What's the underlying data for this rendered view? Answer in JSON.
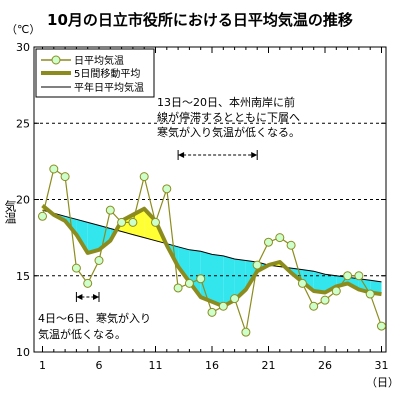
{
  "chart_data": {
    "type": "line",
    "title": "10月の日立市役所における日平均気温の推移",
    "y_unit": "（℃）",
    "ylabel": "気温",
    "x_unit": "（日）",
    "xlim": [
      1,
      31
    ],
    "ylim": [
      10,
      30
    ],
    "x_ticks": [
      "1",
      "6",
      "11",
      "16",
      "21",
      "26",
      "31"
    ],
    "y_ticks": [
      "10",
      "15",
      "20",
      "25",
      "30"
    ],
    "grid_y_dashed": [
      15,
      20,
      25
    ],
    "legend_position": "top-left",
    "x": [
      1,
      2,
      3,
      4,
      5,
      6,
      7,
      8,
      9,
      10,
      11,
      12,
      13,
      14,
      15,
      16,
      17,
      18,
      19,
      20,
      21,
      22,
      23,
      24,
      25,
      26,
      27,
      28,
      29,
      30,
      31
    ],
    "series": [
      {
        "name": "日平均気温",
        "color": "#8c8c1e",
        "marker": "circle",
        "values": [
          18.9,
          22.0,
          21.5,
          15.5,
          14.5,
          16.0,
          19.3,
          18.5,
          18.5,
          21.5,
          18.5,
          20.7,
          14.2,
          14.5,
          14.8,
          12.6,
          13.0,
          13.5,
          11.3,
          15.7,
          17.2,
          17.5,
          17.0,
          14.5,
          13.0,
          13.4,
          14.0,
          15.0,
          15.0,
          13.8,
          11.7
        ]
      },
      {
        "name": "5日間移動平均",
        "color": "#8c8c1e",
        "style": "thick",
        "values": [
          19.6,
          19.0,
          18.6,
          17.7,
          16.5,
          16.7,
          17.3,
          18.6,
          19.0,
          19.4,
          18.6,
          17.0,
          15.6,
          14.6,
          13.6,
          13.3,
          13.0,
          13.4,
          14.1,
          15.3,
          15.7,
          15.9,
          15.2,
          14.6,
          14.0,
          13.9,
          14.3,
          14.5,
          14.1,
          13.9,
          13.8
        ]
      },
      {
        "name": "平年日平均気温",
        "color": "#000000",
        "style": "thin",
        "values": [
          19.3,
          19.1,
          18.9,
          18.7,
          18.5,
          18.3,
          18.1,
          17.9,
          17.7,
          17.5,
          17.3,
          17.1,
          16.9,
          16.7,
          16.6,
          16.4,
          16.3,
          16.1,
          16.0,
          15.9,
          15.7,
          15.6,
          15.5,
          15.4,
          15.3,
          15.1,
          15.0,
          14.9,
          14.8,
          14.7,
          14.6
        ]
      }
    ],
    "fill_above_color": "#ffff33",
    "fill_below_color": "#33e6ee",
    "annotations": [
      {
        "lines": [
          "13日～20日、本州南岸に前",
          "線が停滞するとともに下層へ",
          "寒気が入り気温が低くなる。"
        ],
        "x_range": [
          13,
          20
        ]
      },
      {
        "lines": [
          "4日～6日、寒気が入り",
          "気温が低くなる。"
        ],
        "x_range": [
          4,
          6
        ]
      }
    ]
  }
}
